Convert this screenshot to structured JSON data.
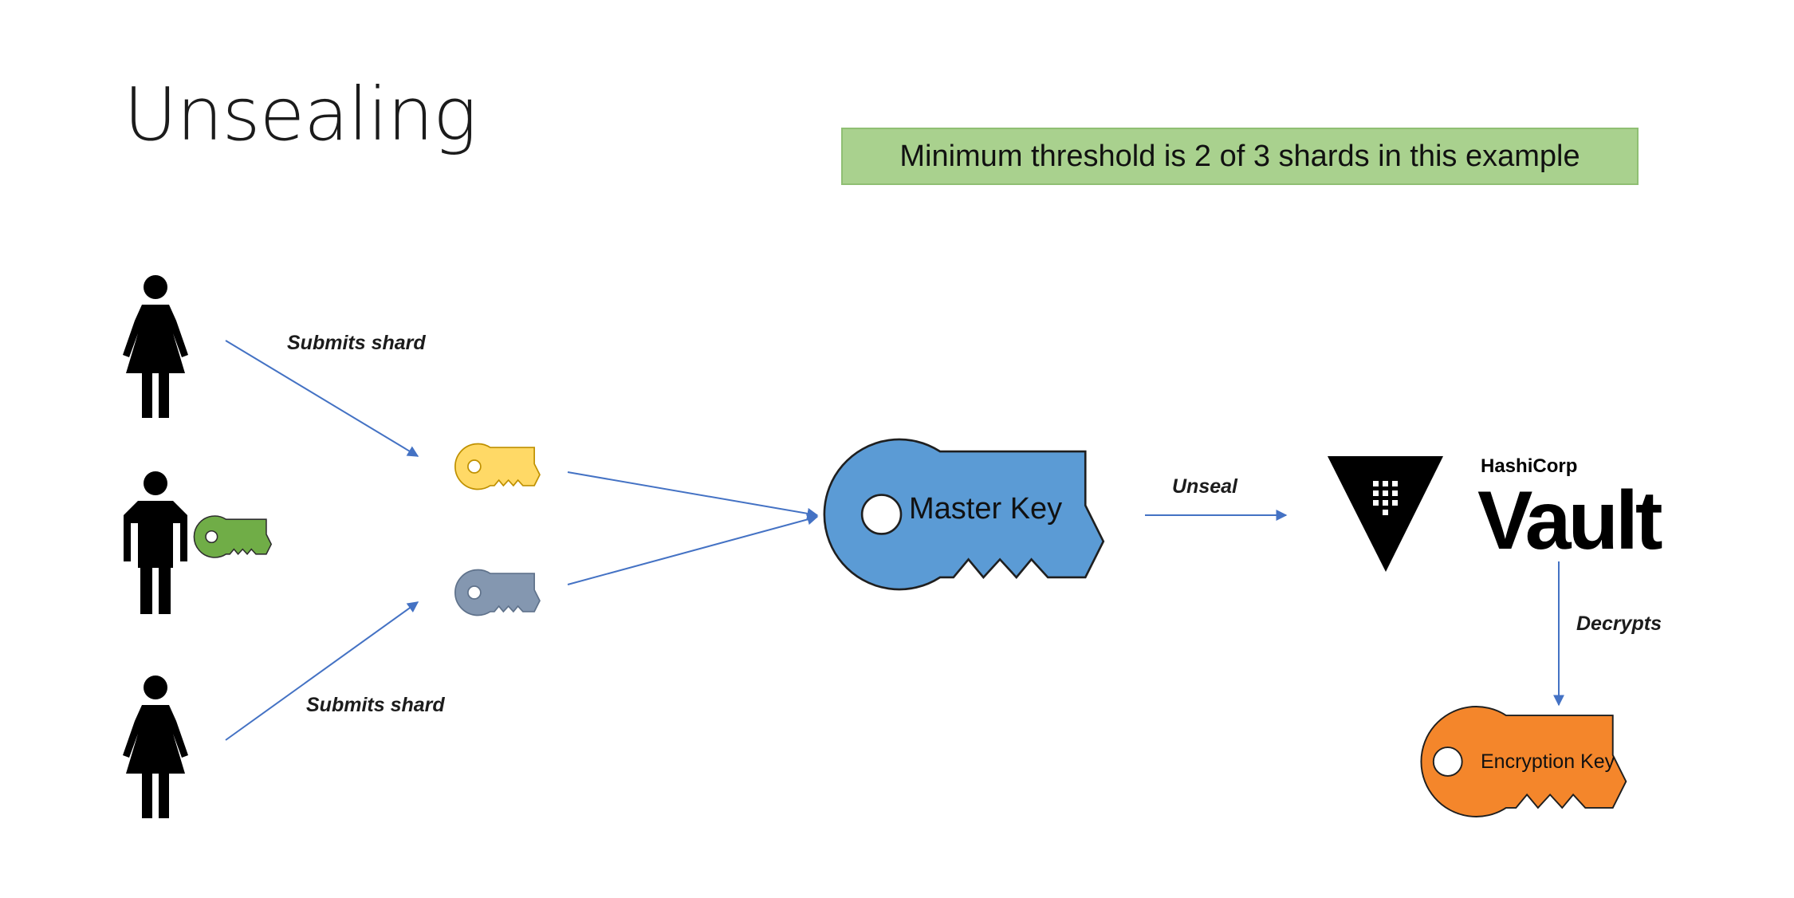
{
  "slide": {
    "title": "Unsealing",
    "note": "Minimum threshold is 2 of 3 shards in this example"
  },
  "people": [
    {
      "name": "person-top",
      "icon": "woman-icon"
    },
    {
      "name": "person-middle",
      "icon": "man-icon",
      "holds": "green-key-icon"
    },
    {
      "name": "person-bottom",
      "icon": "woman-icon"
    }
  ],
  "arrows": {
    "submits_top": "Submits shard",
    "submits_bottom": "Submits shard",
    "unseal": "Unseal",
    "decrypts": "Decrypts"
  },
  "shards": [
    {
      "icon": "yellow-key-icon",
      "color": "#ffd966"
    },
    {
      "icon": "slate-key-icon",
      "color": "#8497b0"
    },
    {
      "icon": "green-key-icon",
      "color": "#70ad47"
    }
  ],
  "master_key": {
    "label": "Master Key",
    "color": "#5b9bd5"
  },
  "vault": {
    "vendor": "HashiCorp",
    "product": "Vault",
    "icon": "vault-logo-icon"
  },
  "encryption_key": {
    "label": "Encryption Key",
    "color": "#f4862b"
  },
  "colors": {
    "arrow": "#4472c4",
    "note_box": "#a9d18e",
    "person": "#000000"
  }
}
